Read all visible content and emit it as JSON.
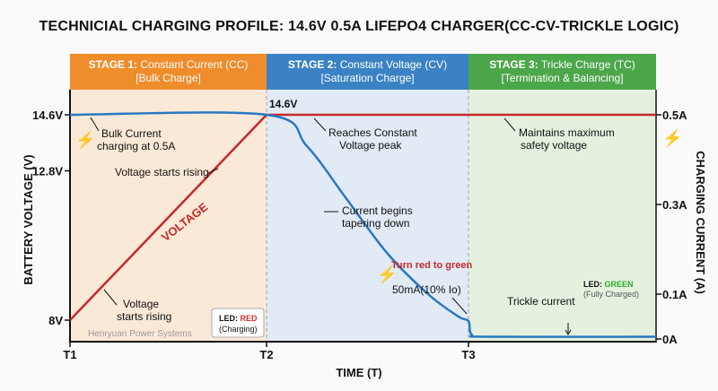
{
  "title": "TECHNICIAL CHARGING PROFILE: 14.6V 0.5A LIFEPO4 CHARGER(CC-CV-TRICKLE LOGIC)",
  "stages": [
    {
      "name": "STAGE 1:",
      "mode": "Constant Current (CC)",
      "sub": "[Bulk Charge]",
      "color": "#ef8c2b"
    },
    {
      "name": "STAGE 2:",
      "mode": "Constant Voltage (CV)",
      "sub": "[Saturation Charge]",
      "color": "#3b82c4"
    },
    {
      "name": "STAGE 3:",
      "mode": "Trickle Charge (TC)",
      "sub": "[Termination & Balancing]",
      "color": "#4ca64a"
    }
  ],
  "chart_data": {
    "type": "line",
    "xlabel": "TIME (T)",
    "ylabel_left": "BATTERY VOLTAGE (V)",
    "ylabel_right": "CHARGING CURRENT (A)",
    "x_ticks": [
      "T1",
      "T2",
      "T3"
    ],
    "y_left_ticks": [
      {
        "label": "14.6V",
        "value": 14.6
      },
      {
        "label": "12.8V",
        "value": 12.8
      },
      {
        "label": "8V",
        "value": 8
      }
    ],
    "y_right_ticks": [
      {
        "label": "0.5A",
        "value": 0.5
      },
      {
        "label": "0.3A",
        "value": 0.3
      },
      {
        "label": "0.1A",
        "value": 0.1
      },
      {
        "label": "0A",
        "value": 0
      }
    ],
    "series": [
      {
        "name": "VOLTAGE",
        "axis": "left",
        "color": "#c62828",
        "x": [
          1,
          2,
          3,
          4.8
        ],
        "y": [
          8,
          14.6,
          14.6,
          14.6
        ]
      },
      {
        "axis": "right",
        "color": "#2a78c2",
        "x": [
          1,
          2,
          2.2,
          2.4,
          2.6,
          2.8,
          2.95,
          3,
          3.03,
          3.2,
          4.8
        ],
        "y": [
          0.5,
          0.5,
          0.43,
          0.31,
          0.19,
          0.1,
          0.05,
          0.04,
          0.01,
          0.005,
          0.005
        ]
      }
    ],
    "annotations": {
      "peak_label": "14.6V",
      "bulk_current": [
        "Bulk Current",
        "charging at 0.5A"
      ],
      "voltage_rising_top": "Voltage starts rising",
      "voltage_line_label": "VOLTAGE",
      "voltage_rising_bottom": [
        "Voltage",
        "starts rising"
      ],
      "led_red": {
        "prefix": "LED:",
        "state": "RED",
        "note": "(Charging)"
      },
      "watermark": "Henryuan Power Systems",
      "reaches_cv": [
        "Reaches Constant",
        "Voltage peak"
      ],
      "current_taper": [
        "Current begins",
        "tapering down"
      ],
      "turn_red_green": "Turn red to green",
      "fifty_ma": "50mA(10% Io)",
      "maintains": [
        "Maintains maximum",
        "safety voltage"
      ],
      "led_green": {
        "prefix": "LED:",
        "state": "GREEN",
        "note": "(Fully Charged)"
      },
      "trickle": "Trickle current"
    }
  }
}
